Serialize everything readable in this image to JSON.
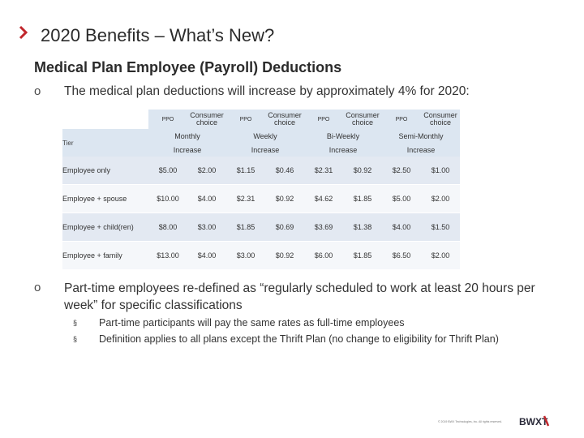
{
  "header": {
    "title": "2020 Benefits – What’s New?",
    "subtitle": "Medical Plan Employee (Payroll) Deductions",
    "accent_color": "#c1272d"
  },
  "bullets": {
    "marker": "o",
    "first": "The medical plan deductions will increase by approximately 4% for 2020:",
    "second": "Part-time employees re-defined as “regularly scheduled to work at least 20 hours per week” for specific classifications",
    "sub_marker": "§",
    "sub_items": [
      "Part-time participants will pay the same rates as full-time employees",
      "Definition applies to all plans except the Thrift Plan (no change to eligibility for Thrift Plan)"
    ]
  },
  "table": {
    "plan_headers": [
      "PPO",
      "Consumer choice",
      "PPO",
      "Consumer choice",
      "PPO",
      "Consumer choice",
      "PPO",
      "Consumer choice"
    ],
    "tier_label": "Tier",
    "period_headers": [
      "Monthly",
      "Weekly",
      "Bi-Weekly",
      "Semi-Monthly"
    ],
    "increase_label": "Increase",
    "rows": [
      {
        "tier": "Employee only",
        "values": [
          "$5.00",
          "$2.00",
          "$1.15",
          "$0.46",
          "$2.31",
          "$0.92",
          "$2.50",
          "$1.00"
        ]
      },
      {
        "tier": "Employee + spouse",
        "values": [
          "$10.00",
          "$4.00",
          "$2.31",
          "$0.92",
          "$4.62",
          "$1.85",
          "$5.00",
          "$2.00"
        ]
      },
      {
        "tier": "Employee + child(ren)",
        "values": [
          "$8.00",
          "$3.00",
          "$1.85",
          "$0.69",
          "$3.69",
          "$1.38",
          "$4.00",
          "$1.50"
        ]
      },
      {
        "tier": "Employee + family",
        "values": [
          "$13.00",
          "$4.00",
          "$3.00",
          "$0.92",
          "$6.00",
          "$1.85",
          "$6.50",
          "$2.00"
        ]
      }
    ]
  },
  "footer": {
    "copyright": "© 2019 BWX Technologies, Inc. All rights reserved.",
    "logo_text": "BWXT"
  }
}
